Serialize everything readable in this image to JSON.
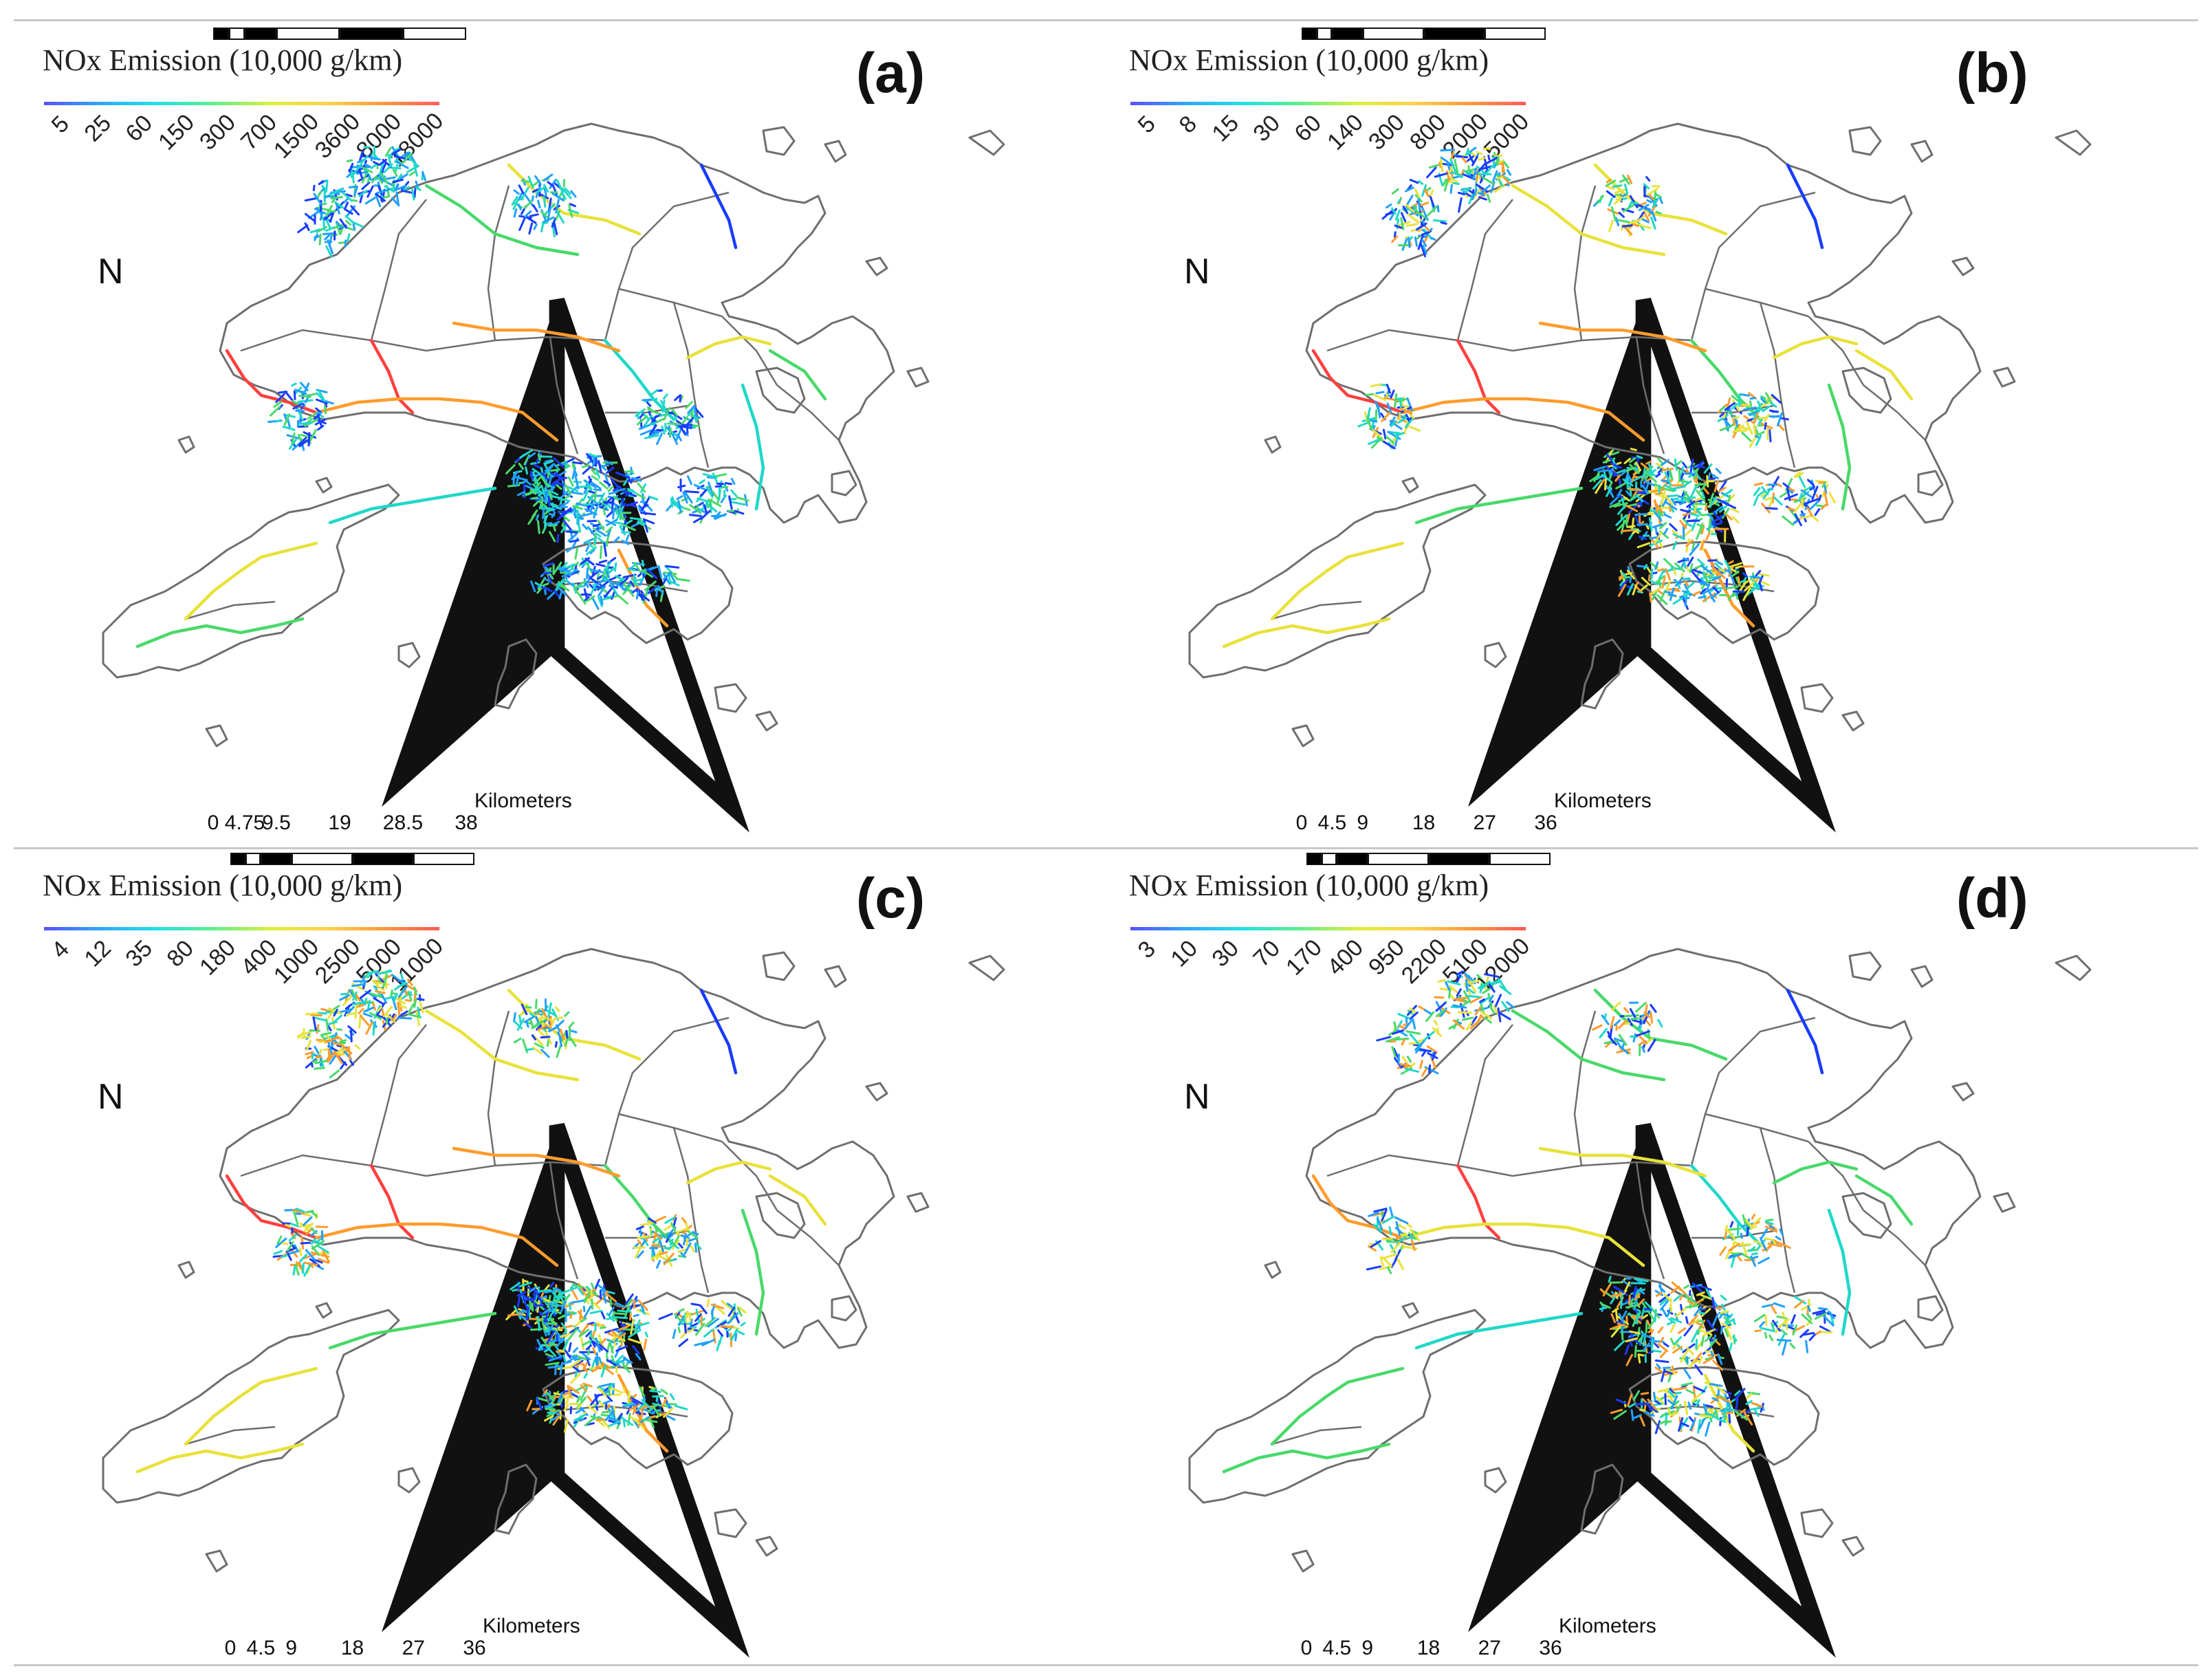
{
  "legend_title": "NOx Emission (10,000 g/km)",
  "scale_unit": "Kilometers",
  "colors": {
    "boundary": "#6e6e6e",
    "ramp": [
      "#5b4fff",
      "#2fa8ff",
      "#22e0e6",
      "#5cf08a",
      "#d9ef3c",
      "#ffd24a",
      "#ff9a3c",
      "#ff5a5a"
    ],
    "road_dense": [
      "#1a3cff",
      "#20a0ff",
      "#1fd8c8",
      "#49d96a",
      "#e8e23a",
      "#ff9b2c",
      "#ff4040"
    ]
  },
  "icons": {
    "north_arrow": "north-arrow-icon"
  },
  "north_label": "N",
  "panels": [
    {
      "id": "a",
      "label": "(a)",
      "legend_ticks": [
        "5",
        "25",
        "60",
        "150",
        "300",
        "700",
        "1500",
        "3600",
        "8000",
        "18000"
      ],
      "scale_ticks": [
        "0",
        "4.75",
        "9.5",
        "19",
        "28.5",
        "38"
      ]
    },
    {
      "id": "b",
      "label": "(b)",
      "legend_ticks": [
        "5",
        "8",
        "15",
        "30",
        "60",
        "140",
        "300",
        "800",
        "2000",
        "5000"
      ],
      "scale_ticks": [
        "0",
        "4.5",
        "9",
        "18",
        "27",
        "36"
      ]
    },
    {
      "id": "c",
      "label": "(c)",
      "legend_ticks": [
        "4",
        "12",
        "35",
        "80",
        "180",
        "400",
        "1000",
        "2500",
        "5000",
        "11000"
      ],
      "scale_ticks": [
        "0",
        "4.5",
        "9",
        "18",
        "27",
        "36"
      ]
    },
    {
      "id": "d",
      "label": "(d)",
      "legend_ticks": [
        "3",
        "10",
        "30",
        "70",
        "170",
        "400",
        "950",
        "2200",
        "5100",
        "12000"
      ],
      "scale_ticks": [
        "0",
        "4.5",
        "9",
        "18",
        "27",
        "36"
      ]
    }
  ]
}
